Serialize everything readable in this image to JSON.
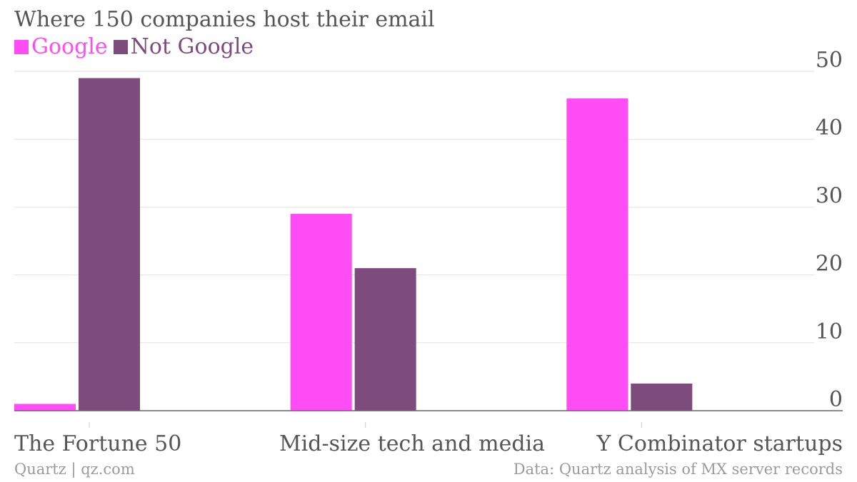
{
  "title": "Where 150 companies host their email",
  "footer": {
    "source_left": "Quartz | qz.com",
    "source_right": "Data: Quartz analysis of MX server records"
  },
  "colors": {
    "google": "#ff4cf5",
    "not_google": "#7d4b7c",
    "grid": "#e2e2e2",
    "axis": "#666666",
    "text": "#555555"
  },
  "chart_data": {
    "type": "bar",
    "categories": [
      "The Fortune 50",
      "Mid-size tech and media",
      "Y Combinator startups"
    ],
    "series": [
      {
        "name": "Google",
        "color": "#ff4cf5",
        "values": [
          1,
          29,
          46
        ]
      },
      {
        "name": "Not Google",
        "color": "#7d4b7c",
        "values": [
          49,
          21,
          4
        ]
      }
    ],
    "y_ticks": [
      "0",
      "10",
      "20",
      "30",
      "40",
      "50"
    ],
    "ylim": [
      0,
      50
    ],
    "grid": true,
    "y_axis_side": "right",
    "legend_position": "top-left"
  }
}
